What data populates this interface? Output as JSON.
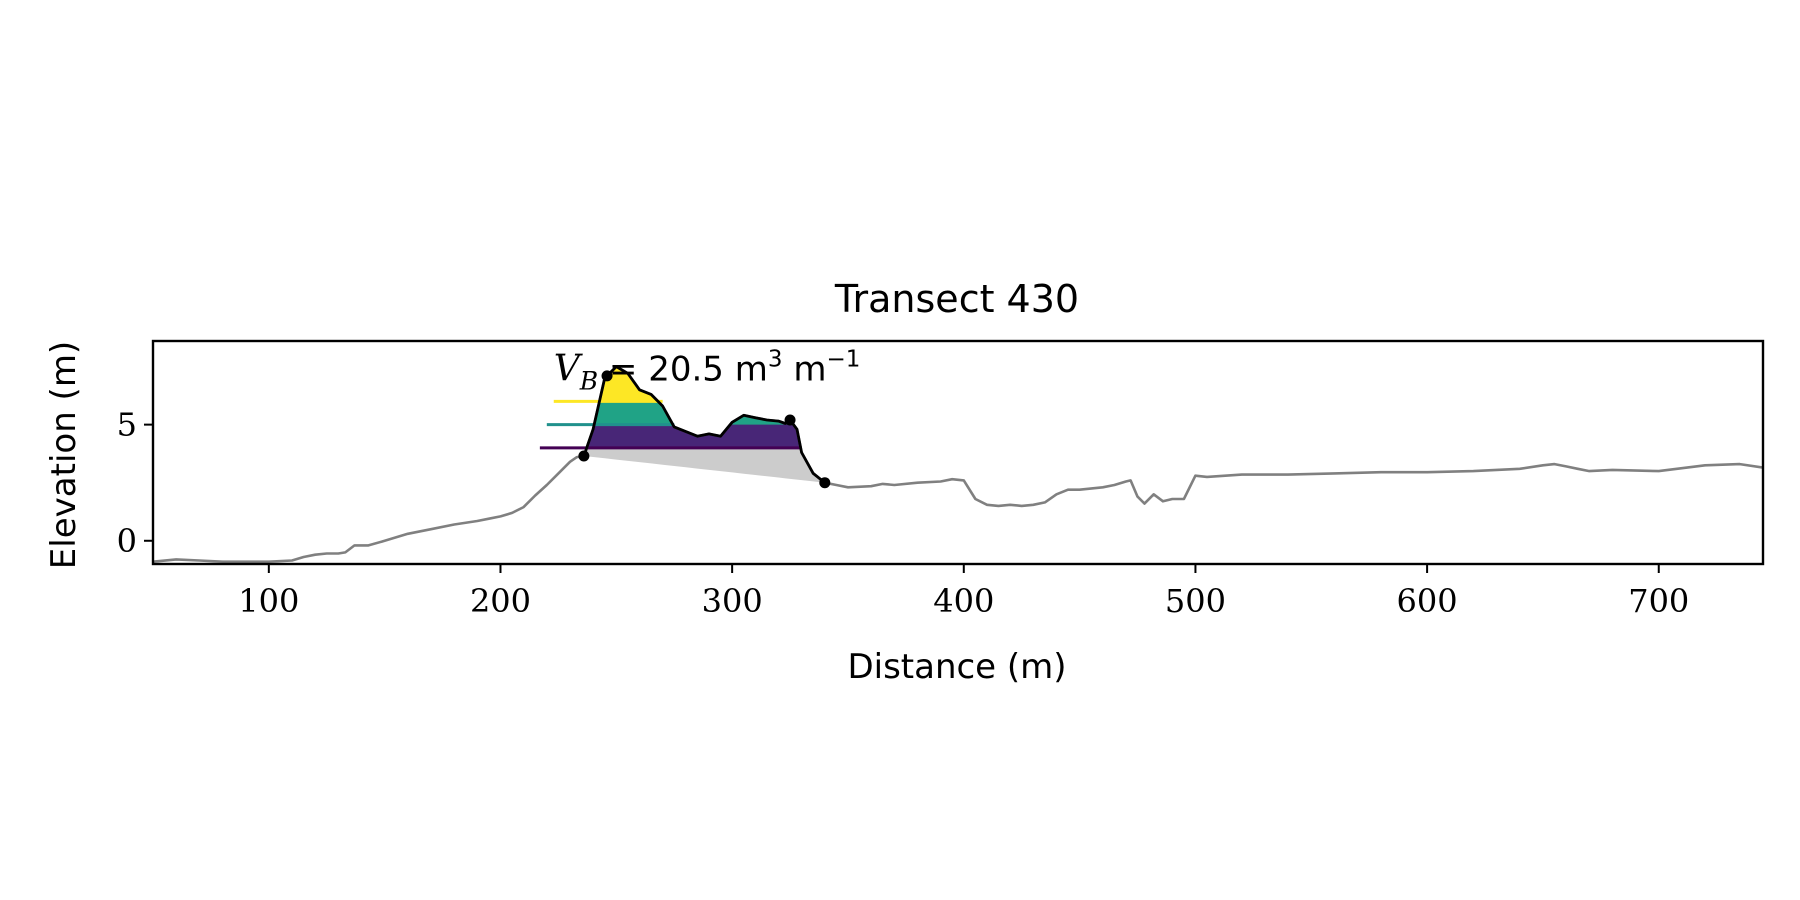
{
  "chart_data": {
    "type": "line",
    "title": "Transect 430",
    "xlabel": "Distance (m)",
    "ylabel": "Elevation (m)",
    "xlim": [
      50,
      745
    ],
    "ylim": [
      -1.0,
      8.6
    ],
    "xticks": [
      100,
      200,
      300,
      400,
      500,
      600,
      700
    ],
    "yticks": [
      0,
      5
    ],
    "grid": false,
    "legend": "none",
    "annotation": {
      "symbol": "V",
      "subscript": "B",
      "equals": " = ",
      "value": "20.5",
      "unit_base": " m",
      "unit_exp": "3",
      "unit_second": " m",
      "unit_second_exp": "−1",
      "at": [
        223,
        6.9
      ]
    },
    "colors": {
      "profile": "#808080",
      "dune": "#000000",
      "base_fill": "#cccccc",
      "level_low": "#440154",
      "level_mid": "#21918c",
      "level_high": "#fde725",
      "fill_low": "#482677",
      "fill_mid": "#20a386",
      "fill_high": "#fde725"
    },
    "series": [
      {
        "role": "full-profile",
        "x": [
          50,
          60,
          70,
          80,
          90,
          100,
          110,
          115,
          120,
          125,
          130,
          133,
          137,
          140,
          143,
          150,
          160,
          170,
          180,
          190,
          195,
          200,
          205,
          210,
          215,
          220,
          225,
          230,
          233,
          236,
          240,
          245,
          250,
          255,
          260,
          265,
          270,
          275,
          280,
          285,
          290,
          295,
          300,
          305,
          310,
          315,
          320,
          323,
          325,
          328,
          330,
          335,
          340,
          345,
          350,
          360,
          365,
          370,
          380,
          390,
          395,
          400,
          405,
          410,
          415,
          420,
          425,
          430,
          435,
          440,
          445,
          450,
          460,
          465,
          470,
          472,
          475,
          478,
          482,
          486,
          490,
          495,
          500,
          505,
          520,
          540,
          560,
          580,
          600,
          620,
          640,
          650,
          655,
          660,
          665,
          670,
          680,
          700,
          720,
          735,
          745
        ],
        "y": [
          -0.9,
          -0.8,
          -0.85,
          -0.9,
          -0.9,
          -0.9,
          -0.85,
          -0.7,
          -0.6,
          -0.55,
          -0.55,
          -0.5,
          -0.2,
          -0.2,
          -0.2,
          0.0,
          0.3,
          0.5,
          0.7,
          0.85,
          0.95,
          1.05,
          1.2,
          1.45,
          1.95,
          2.4,
          2.9,
          3.4,
          3.6,
          3.65,
          4.8,
          7.0,
          7.5,
          7.2,
          6.5,
          6.3,
          5.8,
          4.9,
          4.7,
          4.5,
          4.6,
          4.5,
          5.1,
          5.4,
          5.3,
          5.2,
          5.15,
          5.05,
          5.2,
          4.8,
          3.8,
          2.9,
          2.5,
          2.4,
          2.3,
          2.35,
          2.45,
          2.4,
          2.5,
          2.55,
          2.65,
          2.6,
          1.8,
          1.55,
          1.5,
          1.55,
          1.5,
          1.55,
          1.65,
          2.0,
          2.2,
          2.2,
          2.3,
          2.4,
          2.55,
          2.6,
          1.9,
          1.6,
          2.0,
          1.7,
          1.8,
          1.8,
          2.8,
          2.75,
          2.85,
          2.85,
          2.9,
          2.95,
          2.95,
          3.0,
          3.1,
          3.25,
          3.3,
          3.2,
          3.1,
          3.0,
          3.05,
          3.0,
          3.25,
          3.3,
          3.15
        ]
      },
      {
        "role": "dune-segment",
        "x": [
          236,
          240,
          245,
          250,
          255,
          260,
          265,
          270,
          275,
          280,
          285,
          290,
          295,
          300,
          305,
          310,
          315,
          320,
          323,
          325,
          328,
          330,
          335,
          340
        ],
        "y": [
          3.65,
          4.8,
          7.0,
          7.5,
          7.2,
          6.5,
          6.3,
          5.8,
          4.9,
          4.7,
          4.5,
          4.6,
          4.5,
          5.1,
          5.4,
          5.3,
          5.2,
          5.15,
          5.05,
          5.2,
          4.8,
          3.8,
          2.9,
          2.5
        ]
      }
    ],
    "points": [
      {
        "role": "dune-toe",
        "x": 236,
        "y": 3.65
      },
      {
        "role": "dune-crest",
        "x": 246,
        "y": 7.1
      },
      {
        "role": "dune-secondary",
        "x": 325,
        "y": 5.2
      },
      {
        "role": "dune-heel",
        "x": 340,
        "y": 2.5
      }
    ],
    "levels": [
      {
        "y": 4.0,
        "x_start": 217,
        "x_end": 330,
        "color": "#440154",
        "fill": "#482677"
      },
      {
        "y": 5.0,
        "x_start": 220,
        "x_end": 275,
        "color": "#21918c",
        "fill": "#20a386"
      },
      {
        "y": 6.0,
        "x_start": 223,
        "x_end": 270,
        "color": "#fde725",
        "fill": "#fde725"
      }
    ]
  }
}
